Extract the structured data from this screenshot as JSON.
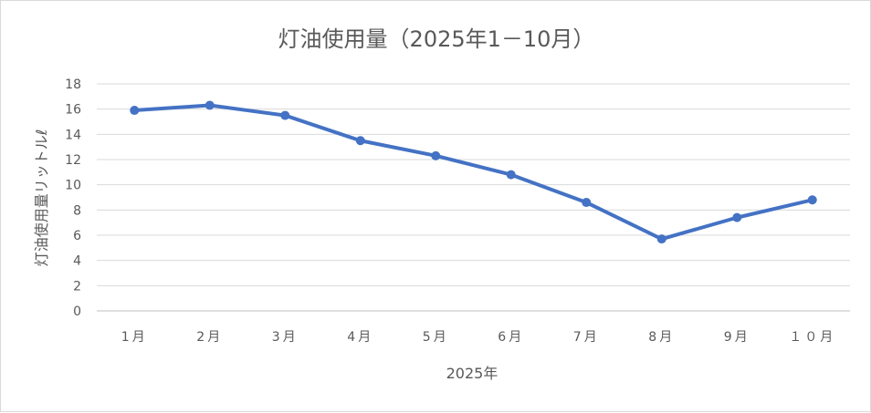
{
  "chart_data": {
    "type": "line",
    "title": "灯油使用量（2025年1－10月）",
    "xlabel": "2025年",
    "ylabel": "灯油使用量リットルℓ",
    "categories": [
      "1月",
      "2月",
      "3月",
      "4月",
      "5月",
      "6月",
      "7月",
      "8月",
      "9月",
      "１０月"
    ],
    "series": [
      {
        "values": [
          15.9,
          16.3,
          15.5,
          13.5,
          12.3,
          10.8,
          8.6,
          5.7,
          7.4,
          8.8
        ],
        "color": "#4472c4"
      }
    ],
    "ylim": [
      0,
      18
    ],
    "yticks": [
      0,
      2,
      4,
      6,
      8,
      10,
      12,
      14,
      16,
      18
    ],
    "grid": true,
    "legend": "none"
  }
}
